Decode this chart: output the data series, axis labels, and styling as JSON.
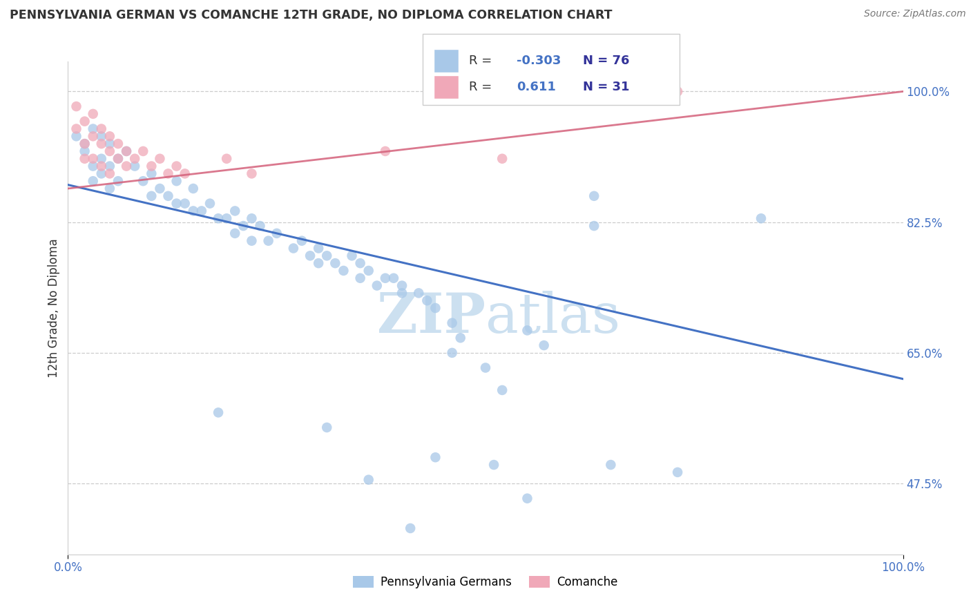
{
  "title": "PENNSYLVANIA GERMAN VS COMANCHE 12TH GRADE, NO DIPLOMA CORRELATION CHART",
  "source": "Source: ZipAtlas.com",
  "ylabel": "12th Grade, No Diploma",
  "xlim": [
    0.0,
    1.0
  ],
  "ylim": [
    0.38,
    1.04
  ],
  "yticks": [
    0.475,
    0.65,
    0.825,
    1.0
  ],
  "ytick_labels": [
    "47.5%",
    "65.0%",
    "82.5%",
    "100.0%"
  ],
  "xtick_labels": [
    "0.0%",
    "100.0%"
  ],
  "blue_R": -0.303,
  "blue_N": 76,
  "pink_R": 0.611,
  "pink_N": 31,
  "blue_color": "#a8c8e8",
  "pink_color": "#f0a8b8",
  "blue_line_color": "#4472c4",
  "pink_line_color": "#d4607a",
  "watermark_color": "#cce0f0",
  "grid_color": "#cccccc",
  "blue_line_start_y": 0.875,
  "blue_line_end_y": 0.615,
  "pink_line_start_y": 0.87,
  "pink_line_end_y": 1.0,
  "pink_line_end_x": 1.0,
  "legend_text_color": "#333333",
  "legend_R_color": "#4472c4",
  "legend_N_color": "#333399"
}
